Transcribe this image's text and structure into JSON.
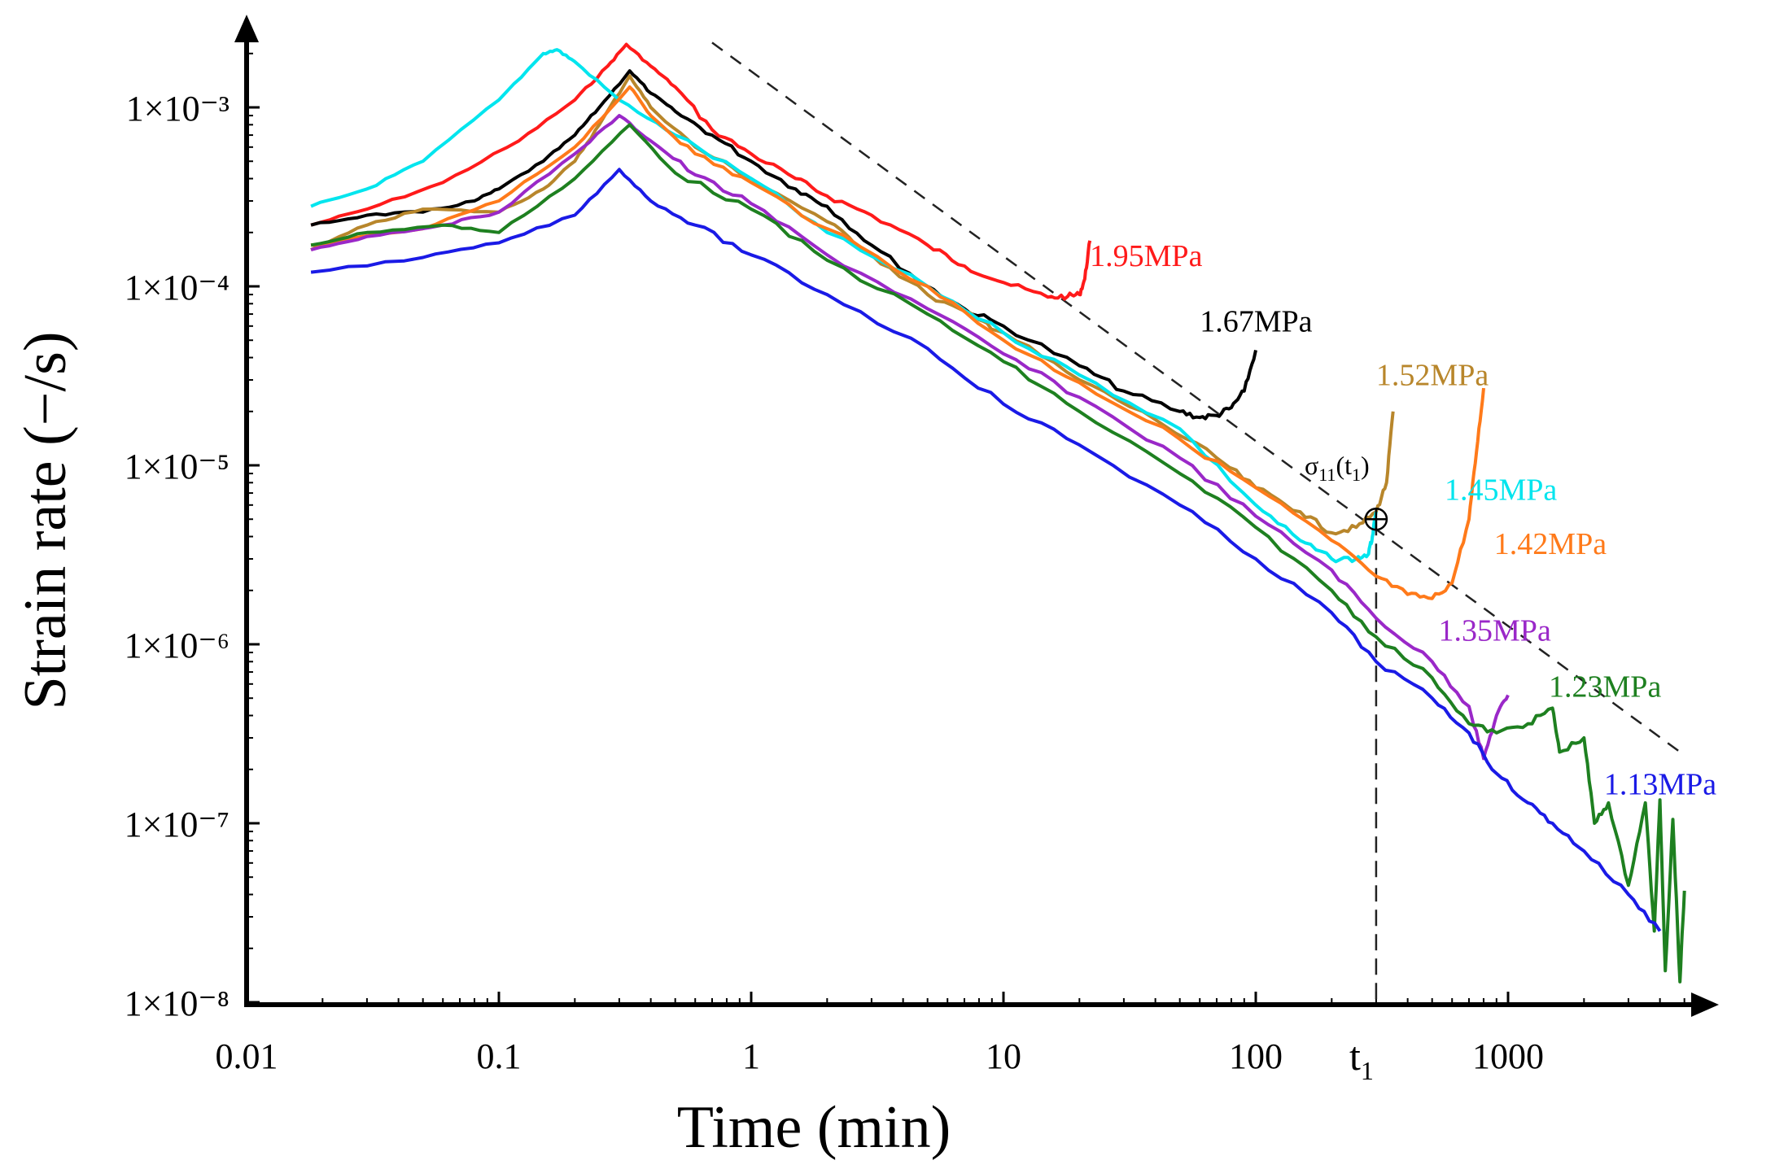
{
  "chart_data": {
    "type": "line",
    "title": "",
    "xlabel": "Time (min)",
    "ylabel": "Strain rate (−/s)",
    "xscale": "log",
    "yscale": "log",
    "xlim": [
      0.01,
      5000
    ],
    "ylim": [
      1e-08,
      0.0026
    ],
    "x_ticks": [
      {
        "value": 0.01,
        "label": "0.01"
      },
      {
        "value": 0.1,
        "label": "0.1"
      },
      {
        "value": 1,
        "label": "1"
      },
      {
        "value": 10,
        "label": "10"
      },
      {
        "value": 100,
        "label": "100"
      },
      {
        "value": 1000,
        "label": "1000"
      }
    ],
    "y_ticks": [
      {
        "value": 0.001,
        "label": "1×10⁻³"
      },
      {
        "value": 0.0001,
        "label": "1×10⁻⁴"
      },
      {
        "value": 1e-05,
        "label": "1×10⁻⁵"
      },
      {
        "value": 1e-06,
        "label": "1×10⁻⁶"
      },
      {
        "value": 1e-07,
        "label": "1×10⁻⁷"
      },
      {
        "value": 1e-08,
        "label": "1×10⁻⁸"
      }
    ],
    "grid": false,
    "series": [
      {
        "name": "1.95MPa",
        "color": "#ff1a1a",
        "label_at": [
          22,
          0.00013
        ],
        "points": [
          [
            0.018,
            0.00022
          ],
          [
            0.03,
            0.00027
          ],
          [
            0.06,
            0.00038
          ],
          [
            0.12,
            0.00065
          ],
          [
            0.2,
            0.0011
          ],
          [
            0.27,
            0.0017
          ],
          [
            0.32,
            0.00225
          ],
          [
            0.4,
            0.0017
          ],
          [
            0.5,
            0.0013
          ],
          [
            0.7,
            0.00075
          ],
          [
            1,
            0.00055
          ],
          [
            1.5,
            0.0004
          ],
          [
            2,
            0.00032
          ],
          [
            3,
            0.00025
          ],
          [
            5,
            0.00017
          ],
          [
            7,
            0.00013
          ],
          [
            10,
            0.000105
          ],
          [
            15,
            8.7e-05
          ],
          [
            18,
            8.8e-05
          ],
          [
            20,
            9e-05
          ],
          [
            21,
            0.00011
          ],
          [
            22,
            0.00018
          ]
        ]
      },
      {
        "name": "1.67MPa",
        "color": "#000000",
        "label_at": [
          60,
          5.6e-05
        ],
        "points": [
          [
            0.018,
            0.00022
          ],
          [
            0.03,
            0.00025
          ],
          [
            0.05,
            0.00026
          ],
          [
            0.08,
            0.0003
          ],
          [
            0.1,
            0.00035
          ],
          [
            0.15,
            0.0005
          ],
          [
            0.2,
            0.0007
          ],
          [
            0.25,
            0.001
          ],
          [
            0.33,
            0.0016
          ],
          [
            0.4,
            0.0012
          ],
          [
            0.5,
            0.00095
          ],
          [
            0.7,
            0.0007
          ],
          [
            1,
            0.0005
          ],
          [
            1.5,
            0.00035
          ],
          [
            2,
            0.00028
          ],
          [
            3,
            0.00017
          ],
          [
            5,
            0.0001
          ],
          [
            7,
            7.5e-05
          ],
          [
            10,
            6e-05
          ],
          [
            20,
            3.6e-05
          ],
          [
            30,
            2.6e-05
          ],
          [
            50,
            2e-05
          ],
          [
            60,
            1.85e-05
          ],
          [
            70,
            1.9e-05
          ],
          [
            80,
            2.1e-05
          ],
          [
            90,
            2.6e-05
          ],
          [
            100,
            4.4e-05
          ]
        ]
      },
      {
        "name": "1.52MPa",
        "color": "#b8862b",
        "label_at": [
          300,
          2.8e-05
        ],
        "points": [
          [
            0.018,
            0.00016
          ],
          [
            0.03,
            0.00022
          ],
          [
            0.05,
            0.00027
          ],
          [
            0.1,
            0.00026
          ],
          [
            0.15,
            0.00035
          ],
          [
            0.2,
            0.0005
          ],
          [
            0.25,
            0.0008
          ],
          [
            0.33,
            0.0015
          ],
          [
            0.4,
            0.001
          ],
          [
            0.6,
            0.0006
          ],
          [
            1,
            0.0004
          ],
          [
            2,
            0.00023
          ],
          [
            3,
            0.00015
          ],
          [
            5,
            9e-05
          ],
          [
            8,
            6.5e-05
          ],
          [
            10,
            5.5e-05
          ],
          [
            20,
            3e-05
          ],
          [
            40,
            1.8e-05
          ],
          [
            70,
            1.1e-05
          ],
          [
            100,
            7.5e-06
          ],
          [
            150,
            5.5e-06
          ],
          [
            200,
            4.2e-06
          ],
          [
            250,
            4.5e-06
          ],
          [
            300,
            5.5e-06
          ],
          [
            330,
            8e-06
          ],
          [
            350,
            2e-05
          ]
        ]
      },
      {
        "name": "1.45MPa",
        "color": "#00e5ee",
        "label_at": [
          560,
          6.4e-06
        ],
        "points": [
          [
            0.018,
            0.00028
          ],
          [
            0.03,
            0.00035
          ],
          [
            0.05,
            0.0005
          ],
          [
            0.1,
            0.0011
          ],
          [
            0.15,
            0.002
          ],
          [
            0.17,
            0.0021
          ],
          [
            0.2,
            0.0018
          ],
          [
            0.3,
            0.0011
          ],
          [
            0.5,
            0.0007
          ],
          [
            1,
            0.0004
          ],
          [
            2,
            0.0002
          ],
          [
            5,
            0.0001
          ],
          [
            10,
            5.5e-05
          ],
          [
            20,
            3.2e-05
          ],
          [
            50,
            1.6e-05
          ],
          [
            100,
            6e-06
          ],
          [
            150,
            3.8e-06
          ],
          [
            200,
            3e-06
          ],
          [
            250,
            3e-06
          ],
          [
            280,
            3.2e-06
          ],
          [
            290,
            4e-06
          ],
          [
            300,
            5.5e-06
          ]
        ]
      },
      {
        "name": "1.42MPa",
        "color": "#ff7a1a",
        "label_at": [
          880,
          3.2e-06
        ],
        "points": [
          [
            0.018,
            0.00017
          ],
          [
            0.05,
            0.00021
          ],
          [
            0.1,
            0.0003
          ],
          [
            0.2,
            0.0006
          ],
          [
            0.33,
            0.0013
          ],
          [
            0.4,
            0.0009
          ],
          [
            0.6,
            0.00055
          ],
          [
            1,
            0.00038
          ],
          [
            2,
            0.00021
          ],
          [
            5,
            0.0001
          ],
          [
            10,
            5e-05
          ],
          [
            20,
            2.9e-05
          ],
          [
            50,
            1.4e-05
          ],
          [
            100,
            7.5e-06
          ],
          [
            200,
            3.8e-06
          ],
          [
            300,
            2.4e-06
          ],
          [
            400,
            1.9e-06
          ],
          [
            500,
            1.8e-06
          ],
          [
            600,
            2.2e-06
          ],
          [
            700,
            5e-06
          ],
          [
            750,
            1.2e-05
          ],
          [
            800,
            2.7e-05
          ]
        ]
      },
      {
        "name": "1.35MPa",
        "color": "#9a28c8",
        "label_at": [
          530,
          1.05e-06
        ],
        "points": [
          [
            0.018,
            0.00016
          ],
          [
            0.03,
            0.00019
          ],
          [
            0.06,
            0.00022
          ],
          [
            0.1,
            0.00026
          ],
          [
            0.2,
            0.00055
          ],
          [
            0.3,
            0.0009
          ],
          [
            0.4,
            0.00065
          ],
          [
            0.6,
            0.00042
          ],
          [
            1,
            0.00029
          ],
          [
            2,
            0.00015
          ],
          [
            5,
            7.5e-05
          ],
          [
            10,
            4.2e-05
          ],
          [
            20,
            2.4e-05
          ],
          [
            50,
            1.1e-05
          ],
          [
            100,
            5.2e-06
          ],
          [
            200,
            2.6e-06
          ],
          [
            300,
            1.4e-06
          ],
          [
            500,
            8e-07
          ],
          [
            700,
            4.5e-07
          ],
          [
            800,
            2.3e-07
          ],
          [
            900,
            4e-07
          ],
          [
            1000,
            5.2e-07
          ]
        ]
      },
      {
        "name": "1.23MPa",
        "color": "#1e8020",
        "label_at": [
          1450,
          5.1e-07
        ],
        "points": [
          [
            0.018,
            0.00017
          ],
          [
            0.03,
            0.0002
          ],
          [
            0.06,
            0.00022
          ],
          [
            0.1,
            0.0002
          ],
          [
            0.2,
            0.0004
          ],
          [
            0.33,
            0.0008
          ],
          [
            0.5,
            0.00043
          ],
          [
            1,
            0.00027
          ],
          [
            2,
            0.00014
          ],
          [
            5,
            7e-05
          ],
          [
            10,
            3.8e-05
          ],
          [
            20,
            2e-05
          ],
          [
            50,
            9e-06
          ],
          [
            100,
            4.5e-06
          ],
          [
            200,
            2e-06
          ],
          [
            300,
            1.1e-06
          ],
          [
            500,
            6.5e-07
          ],
          [
            700,
            3.6e-07
          ],
          [
            900,
            3.2e-07
          ],
          [
            1200,
            3.6e-07
          ],
          [
            1500,
            4.4e-07
          ],
          [
            1600,
            2.5e-07
          ],
          [
            2000,
            3e-07
          ],
          [
            2200,
            1e-07
          ],
          [
            2500,
            1.3e-07
          ],
          [
            3000,
            4.5e-08
          ],
          [
            3500,
            1.3e-07
          ],
          [
            3800,
            2.5e-08
          ],
          [
            4000,
            1.35e-07
          ],
          [
            4200,
            1.5e-08
          ],
          [
            4500,
            1.05e-07
          ],
          [
            4800,
            1.3e-08
          ],
          [
            5000,
            4.2e-08
          ]
        ]
      },
      {
        "name": "1.13MPa",
        "color": "#1a1ae6",
        "label_at": [
          2400,
          1.45e-07
        ],
        "points": [
          [
            0.018,
            0.00012
          ],
          [
            0.05,
            0.000145
          ],
          [
            0.1,
            0.000175
          ],
          [
            0.2,
            0.00025
          ],
          [
            0.3,
            0.00045
          ],
          [
            0.4,
            0.0003
          ],
          [
            0.6,
            0.00022
          ],
          [
            1,
            0.00015
          ],
          [
            2,
            9e-05
          ],
          [
            5,
            4.5e-05
          ],
          [
            10,
            2.2e-05
          ],
          [
            20,
            1.3e-05
          ],
          [
            50,
            6e-06
          ],
          [
            100,
            3e-06
          ],
          [
            200,
            1.5e-06
          ],
          [
            300,
            8e-07
          ],
          [
            500,
            5e-07
          ],
          [
            700,
            3.2e-07
          ],
          [
            900,
            1.9e-07
          ],
          [
            1200,
            1.3e-07
          ],
          [
            1500,
            1e-07
          ],
          [
            2000,
            7e-08
          ],
          [
            3000,
            4e-08
          ],
          [
            4000,
            2.5e-08
          ]
        ]
      }
    ],
    "annotations": {
      "marker_label": "σ",
      "marker_sub1": "11",
      "marker_paren_open": "(t",
      "marker_sub2": "1",
      "marker_paren_close": ")",
      "marker_point": [
        300,
        5e-06
      ],
      "t1_main": "t",
      "t1_sub": "1",
      "t1_value": 300,
      "dashed_line": [
        [
          0.7,
          0.0023
        ],
        [
          5000,
          2.4e-07
        ]
      ]
    }
  }
}
